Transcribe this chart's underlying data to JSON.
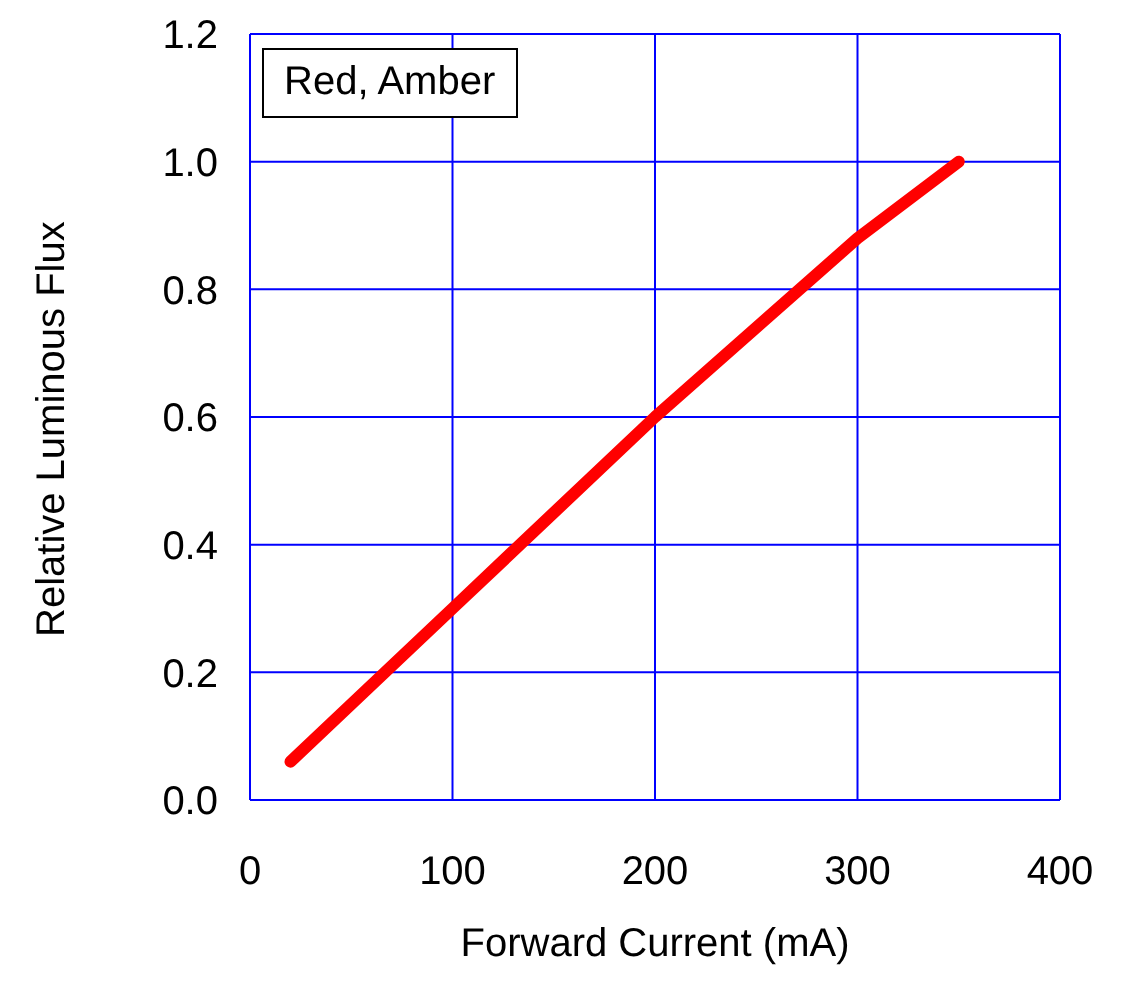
{
  "chart_data": {
    "type": "line",
    "xlabel": "Forward Current (mA)",
    "ylabel": "Relative Luminous Flux",
    "annotations": [
      "Red, Amber"
    ],
    "x": [
      20,
      100,
      200,
      300,
      350
    ],
    "series": [
      {
        "color": "#ff0000",
        "values": [
          0.06,
          0.3,
          0.6,
          0.88,
          1.0
        ]
      }
    ],
    "xlim": [
      0,
      400
    ],
    "xticks": [
      0,
      100,
      200,
      300,
      400
    ],
    "ylim": [
      0,
      1.2
    ],
    "yticks": [
      {
        "value": 0,
        "label": "0.0"
      },
      0.2,
      0.4,
      0.6,
      0.8,
      {
        "value": 1,
        "label": "1.0"
      },
      1.2
    ],
    "grid": true,
    "marker": "none",
    "line_style": "solid"
  }
}
